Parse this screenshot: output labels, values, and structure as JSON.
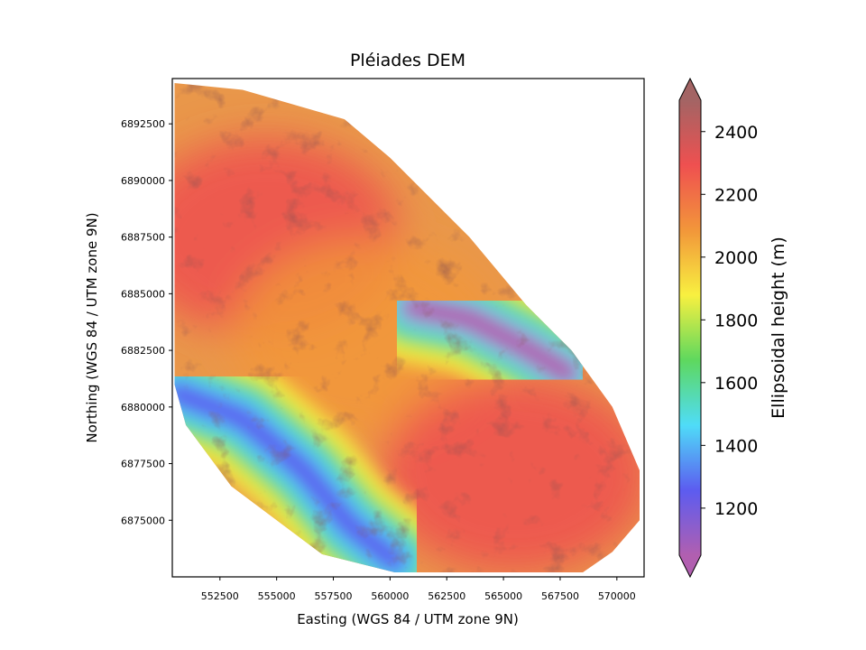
{
  "chart_data": {
    "type": "heatmap",
    "title": "Pléiades DEM",
    "xlabel": "Easting (WGS 84 / UTM zone 9N)",
    "ylabel": "Northing (WGS 84 / UTM zone 9N)",
    "xlim": [
      550400,
      571200
    ],
    "ylim": [
      6872500,
      6894500
    ],
    "x_ticks": [
      552500,
      555000,
      557500,
      560000,
      562500,
      565000,
      567500,
      570000
    ],
    "y_ticks": [
      6875000,
      6877500,
      6880000,
      6882500,
      6885000,
      6887500,
      6890000,
      6892500
    ],
    "colorbar": {
      "label": "Ellipsoidal height (m)",
      "range": [
        1050,
        2500
      ],
      "ticks": [
        1200,
        1400,
        1600,
        1800,
        2000,
        2200,
        2400
      ],
      "extend": "both",
      "colormap": "rainbow",
      "colors": [
        "#b15fb0",
        "#5c5cf0",
        "#4fdcf8",
        "#5ed85e",
        "#f8f040",
        "#f2963a",
        "#ef5050",
        "#a36464"
      ]
    },
    "data_footprint": [
      [
        550500,
        6894300
      ],
      [
        553500,
        6894000
      ],
      [
        558000,
        6892700
      ],
      [
        560000,
        6891000
      ],
      [
        563500,
        6887500
      ],
      [
        566000,
        6884500
      ],
      [
        568000,
        6882500
      ],
      [
        569800,
        6880000
      ],
      [
        571000,
        6877200
      ],
      [
        571000,
        6875000
      ],
      [
        569800,
        6873600
      ],
      [
        568500,
        6872700
      ],
      [
        560200,
        6872700
      ],
      [
        557000,
        6873500
      ],
      [
        553000,
        6876500
      ],
      [
        551000,
        6879200
      ],
      [
        550500,
        6881000
      ]
    ],
    "valleys": [
      {
        "name": "southwest valley",
        "path": [
          [
            550600,
            6880600
          ],
          [
            553500,
            6879500
          ],
          [
            556200,
            6877200
          ],
          [
            558200,
            6874800
          ],
          [
            560200,
            6873200
          ]
        ],
        "height": 1250
      },
      {
        "name": "northeast valley",
        "path": [
          [
            561000,
            6884400
          ],
          [
            563500,
            6883900
          ],
          [
            566000,
            6882600
          ],
          [
            567800,
            6881500
          ]
        ],
        "height": 1150
      }
    ],
    "uplands": [
      {
        "name": "northwest plateau",
        "center": [
          554500,
          6887500
        ],
        "height": 2300
      },
      {
        "name": "central ridge",
        "center": [
          559000,
          6883000
        ],
        "height": 2150
      },
      {
        "name": "southeast massif",
        "center": [
          565500,
          6877000
        ],
        "height": 2200
      }
    ]
  }
}
